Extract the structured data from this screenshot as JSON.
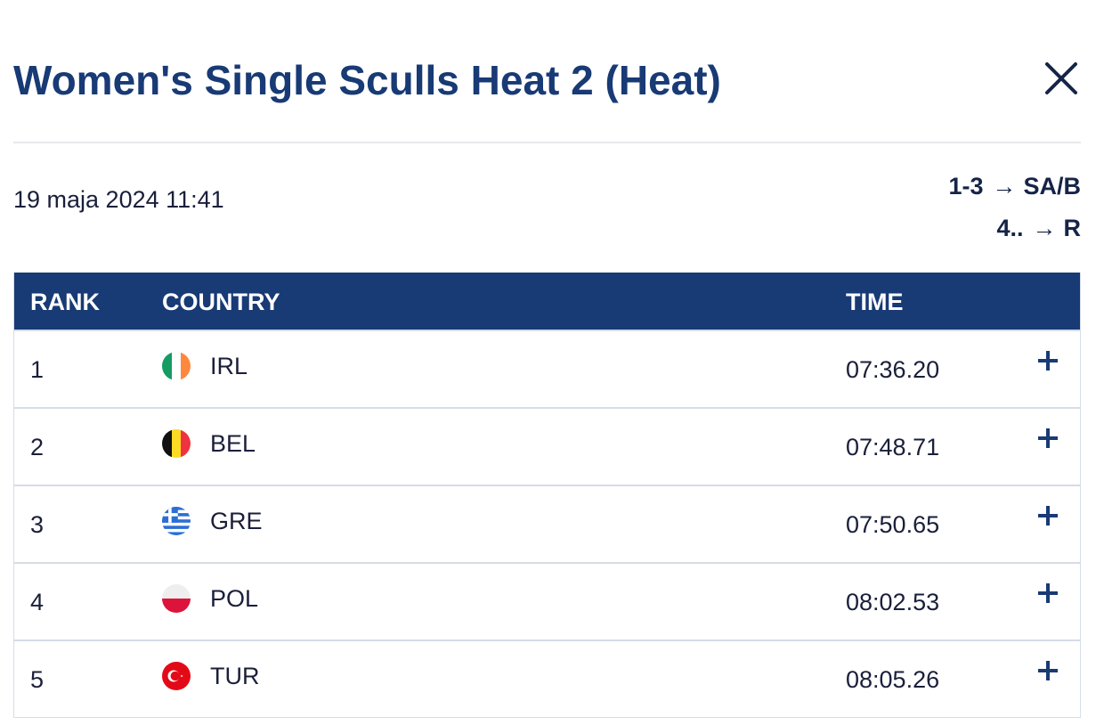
{
  "title": "Women's Single Sculls Heat 2 (Heat)",
  "date": "19 maja 2024 11:41",
  "progression": [
    {
      "ranks": "1-3",
      "arrow": "→",
      "target": "SA/B"
    },
    {
      "ranks": "4..",
      "arrow": "→",
      "target": "R"
    }
  ],
  "table": {
    "headers": {
      "rank": "RANK",
      "country": "COUNTRY",
      "time": "TIME"
    },
    "rows": [
      {
        "rank": "1",
        "code": "IRL",
        "flag": "ireland-flag-icon",
        "time": "07:36.20"
      },
      {
        "rank": "2",
        "code": "BEL",
        "flag": "belgium-flag-icon",
        "time": "07:48.71"
      },
      {
        "rank": "3",
        "code": "GRE",
        "flag": "greece-flag-icon",
        "time": "07:50.65"
      },
      {
        "rank": "4",
        "code": "POL",
        "flag": "poland-flag-icon",
        "time": "08:02.53"
      },
      {
        "rank": "5",
        "code": "TUR",
        "flag": "turkey-flag-icon",
        "time": "08:05.26"
      }
    ]
  },
  "colors": {
    "brand": "#183a75",
    "text": "#1a1f3a",
    "divider": "#e6e8ec"
  }
}
